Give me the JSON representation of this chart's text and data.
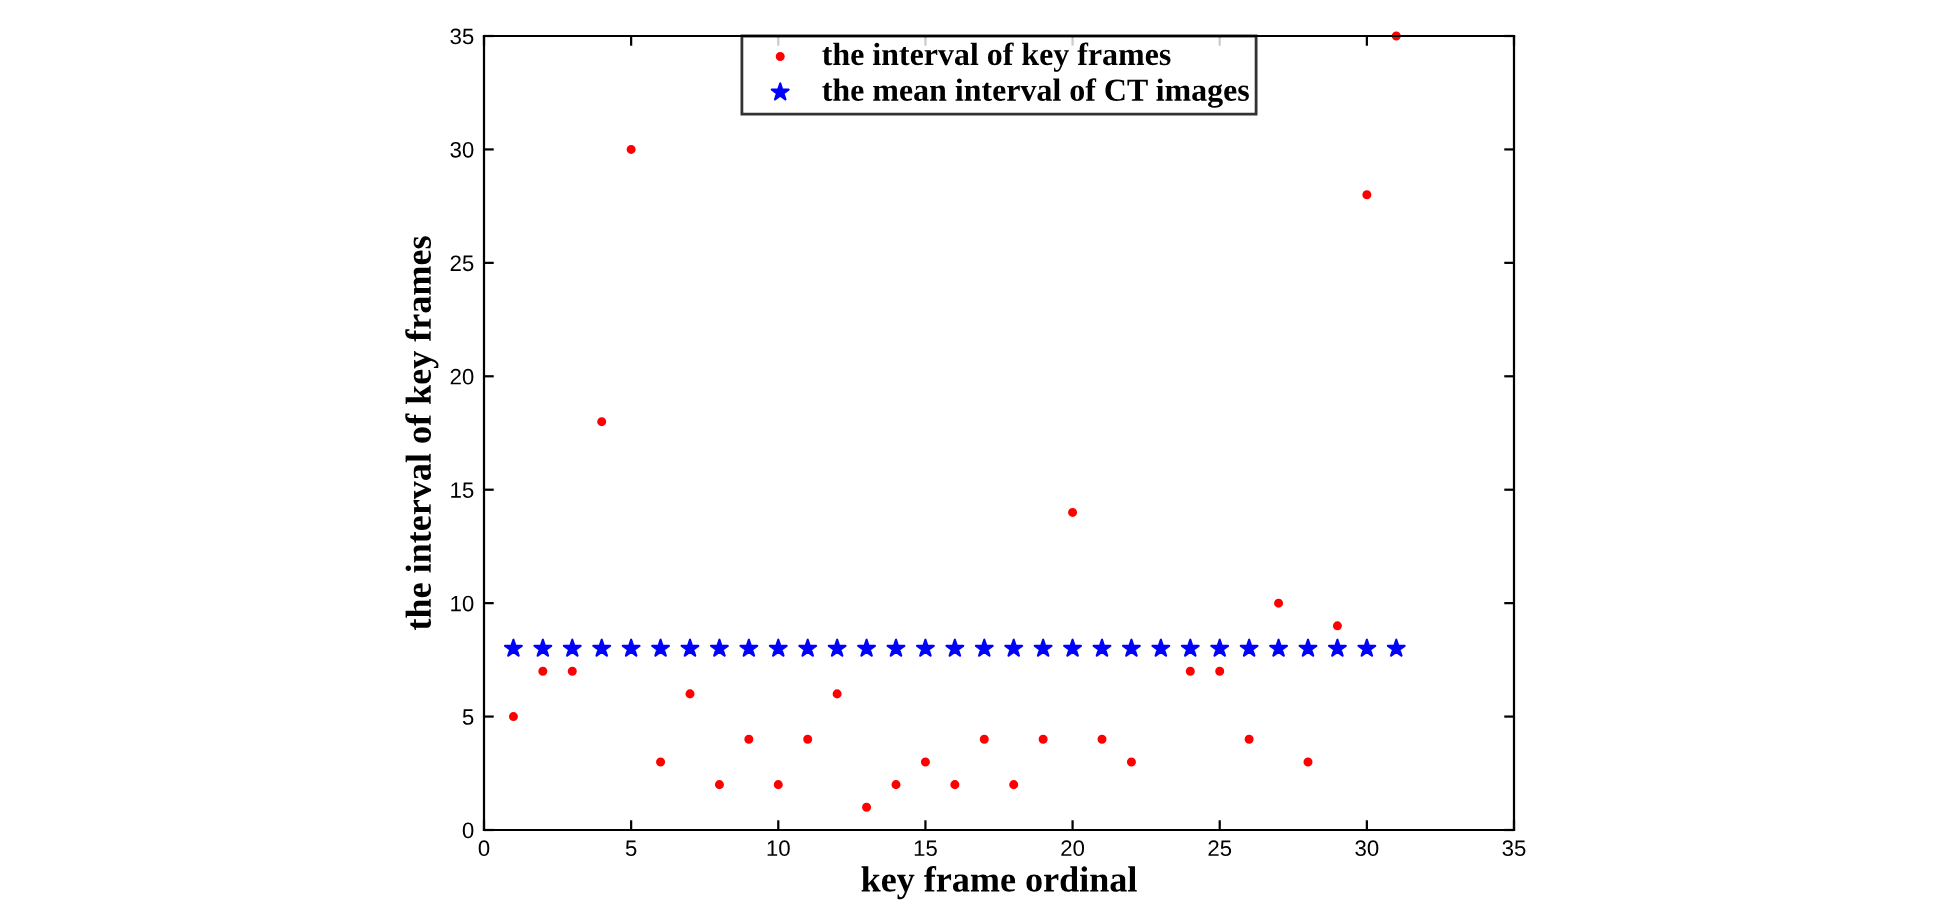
{
  "chart_data": {
    "type": "scatter",
    "xlabel": "key frame ordinal",
    "ylabel": "the interval of key frames",
    "x": [
      1,
      2,
      3,
      4,
      5,
      6,
      7,
      8,
      9,
      10,
      11,
      12,
      13,
      14,
      15,
      16,
      17,
      18,
      19,
      20,
      21,
      22,
      23,
      24,
      25,
      26,
      27,
      28,
      29,
      30,
      31
    ],
    "series": [
      {
        "name": "the interval of key frames",
        "color": "#ff0000",
        "marker": "circle",
        "values": [
          5,
          7,
          7,
          18,
          30,
          3,
          6,
          2,
          4,
          2,
          4,
          6,
          1,
          2,
          3,
          2,
          4,
          2,
          4,
          14,
          4,
          3,
          null,
          7,
          7,
          4,
          10,
          3,
          9,
          28,
          35
        ]
      },
      {
        "name": "the mean interval of CT images",
        "color": "#0000ff",
        "marker": "star",
        "values": [
          8,
          8,
          8,
          8,
          8,
          8,
          8,
          8,
          8,
          8,
          8,
          8,
          8,
          8,
          8,
          8,
          8,
          8,
          8,
          8,
          8,
          8,
          8,
          8,
          8,
          8,
          8,
          8,
          8,
          8,
          8
        ]
      }
    ],
    "xlim": [
      0,
      35
    ],
    "xticks": [
      0,
      5,
      10,
      15,
      20,
      25,
      30,
      35
    ],
    "ylim": [
      0,
      35
    ],
    "yticks": [
      0,
      5,
      10,
      15,
      20,
      25,
      30,
      35
    ],
    "grid": false,
    "legend": "top"
  }
}
